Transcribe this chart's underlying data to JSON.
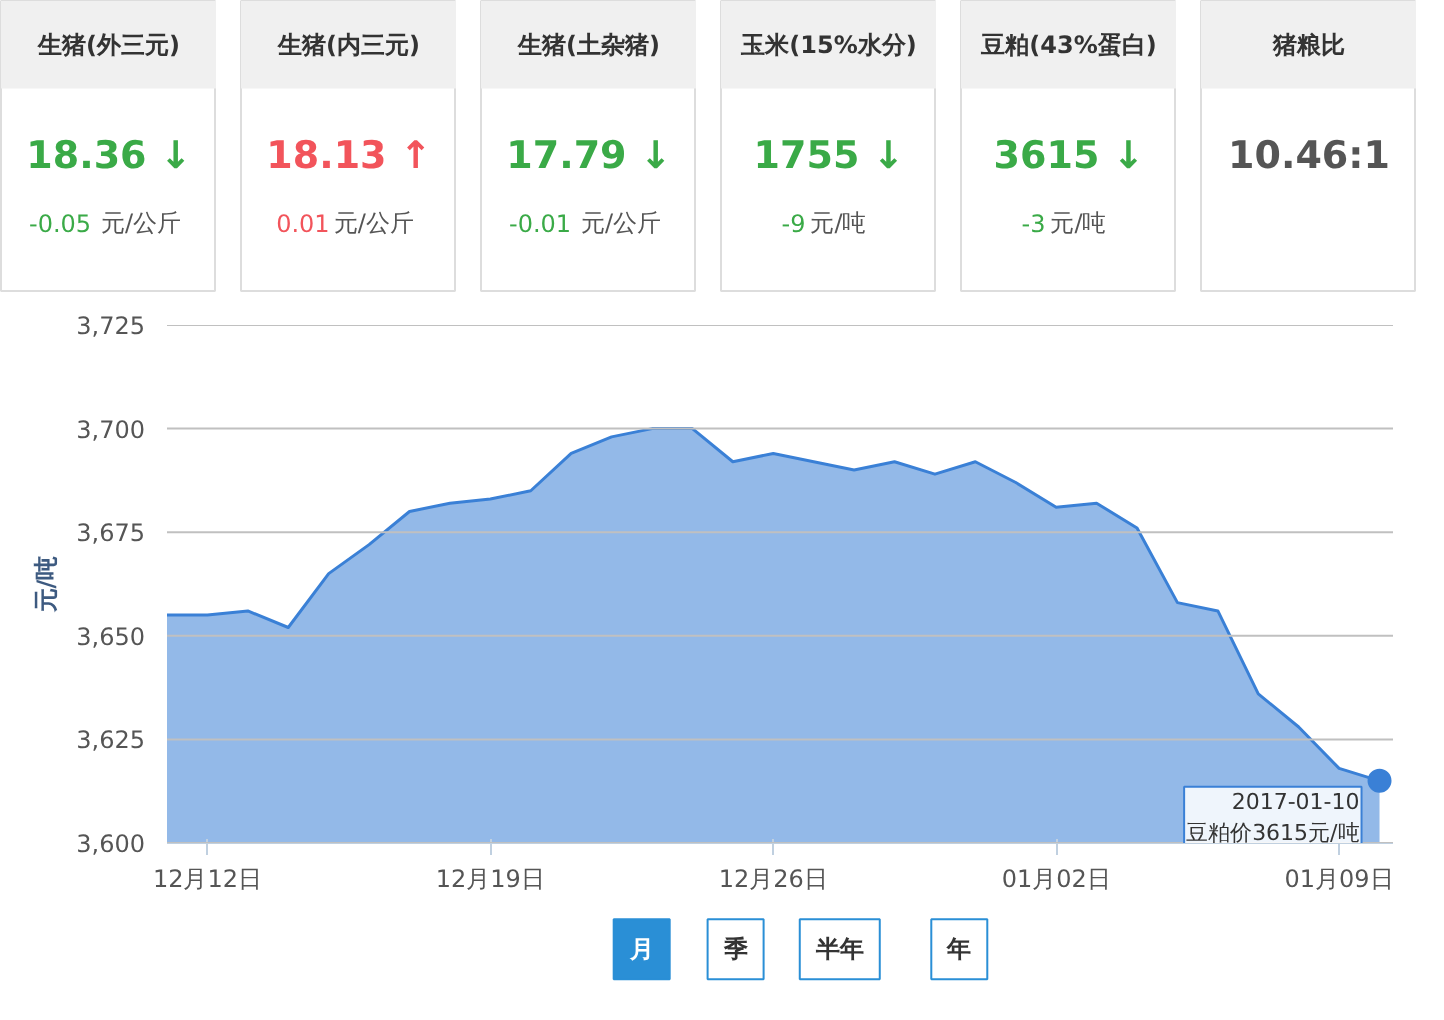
{
  "chart_data": [
    {
      "type": "other",
      "title": "生猪(外三元)",
      "subtitle": "18.36 ↓",
      "color": "#3aaa47",
      "annotations": [
        "-0.05",
        "元/公斤"
      ]
    },
    {
      "type": "other",
      "title": "生猪(内三元)",
      "subtitle": "18.13 ↑",
      "color": "#f2545b",
      "annotations": [
        "0.01",
        "元/公斤"
      ]
    },
    {
      "type": "other",
      "title": "生猪(土杂猪)",
      "subtitle": "17.79 ↓",
      "color": "#3aaa47",
      "annotations": [
        "-0.01",
        "元/公斤"
      ]
    },
    {
      "type": "other",
      "title": "玉米(15%水分)",
      "subtitle": "1755 ↓",
      "color": "#3aaa47",
      "annotations": [
        "-9",
        "元/吨"
      ]
    },
    {
      "type": "other",
      "title": "豆粕(43%蛋白)",
      "subtitle": "3615 ↓",
      "color": "#3aaa47",
      "annotations": [
        "-3",
        "元/吨"
      ]
    },
    {
      "type": "other",
      "title": "猪粮比",
      "subtitle": "10.46:1",
      "color": "#555555"
    },
    {
      "type": "area",
      "ylabel": "元/吨",
      "color": "#3a80d6",
      "grid": "y",
      "x": [
        "2016-12-11",
        "2016-12-12",
        "2016-12-13",
        "2016-12-14",
        "2016-12-15",
        "2016-12-16",
        "2016-12-17",
        "2016-12-18",
        "2016-12-19",
        "2016-12-20",
        "2016-12-21",
        "2016-12-22",
        "2016-12-23",
        "2016-12-24",
        "2016-12-25",
        "2016-12-26",
        "2016-12-27",
        "2016-12-28",
        "2016-12-29",
        "2016-12-30",
        "2016-12-31",
        "2017-01-01",
        "2017-01-02",
        "2017-01-03",
        "2017-01-04",
        "2017-01-05",
        "2017-01-06",
        "2017-01-07",
        "2017-01-08",
        "2017-01-09",
        "2017-01-10"
      ],
      "values": [
        3655,
        3655,
        3656,
        3652,
        3665,
        3672,
        3680,
        3682,
        3683,
        3685,
        3694,
        3698,
        3700,
        3700,
        3692,
        3694,
        3692,
        3690,
        3692,
        3689,
        3692,
        3687,
        3681,
        3682,
        3676,
        3658,
        3656,
        3636,
        3628,
        3618,
        3615
      ],
      "xlim": [
        "2016-12-11",
        "2017-01-10T08:00"
      ],
      "xticks": [
        {
          "value": "2016-12-12",
          "label": "12月12日"
        },
        {
          "value": "2016-12-19",
          "label": "12月19日"
        },
        {
          "value": "2016-12-26",
          "label": "12月26日"
        },
        {
          "value": "2017-01-02",
          "label": "01月02日"
        },
        {
          "value": "2017-01-09",
          "label": "01月09日"
        }
      ],
      "ylim": [
        3600,
        3725
      ],
      "yticks": [
        {
          "value": 3600,
          "label": "3,600"
        },
        {
          "value": 3625,
          "label": "3,625"
        },
        {
          "value": 3650,
          "label": "3,650"
        },
        {
          "value": 3675,
          "label": "3,675"
        },
        {
          "value": 3700,
          "label": "3,700"
        },
        {
          "value": 3725,
          "label": "3,725"
        }
      ],
      "annotations": [
        {
          "text": "2017-01-10\n豆粕价3615元/吨",
          "x": "2017-01-10",
          "y": 3615
        },
        "月",
        "季",
        "半年",
        "年"
      ]
    }
  ]
}
